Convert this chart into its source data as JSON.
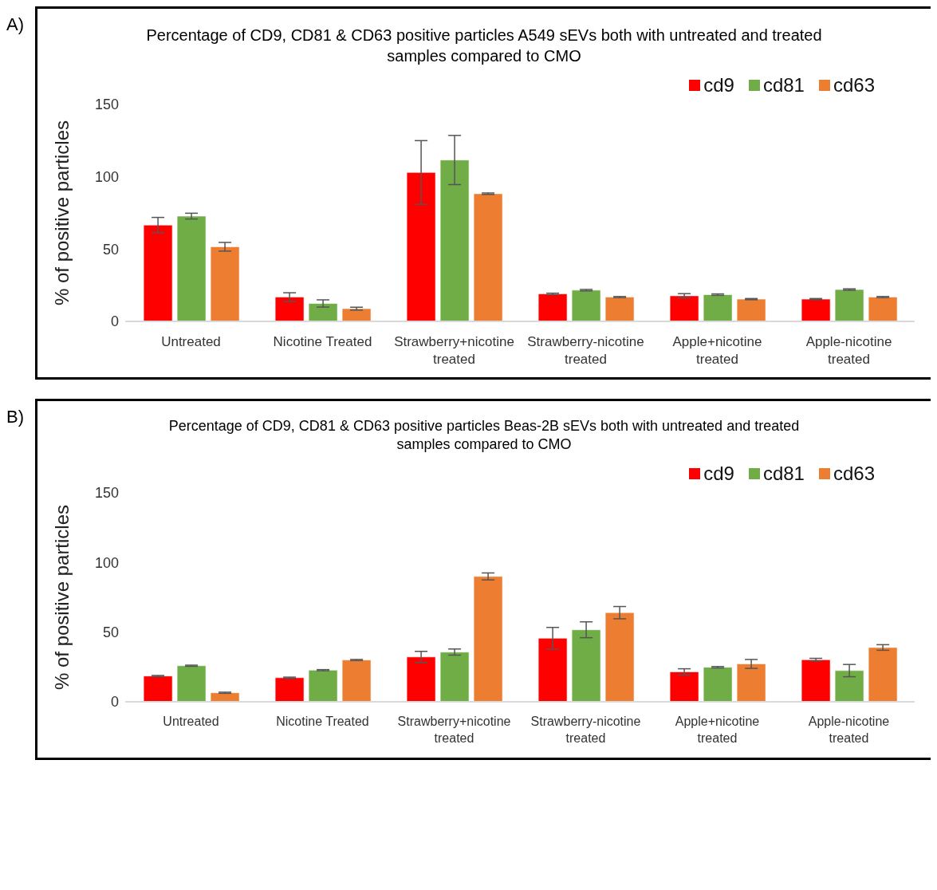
{
  "chart_data": [
    {
      "type": "bar",
      "title": "Percentage of CD9, CD81 & CD63 positive particles A549 sEVs both with untreated and treated samples compared to CMO",
      "ylabel": "% of positive particles",
      "annotations": [
        "A)"
      ],
      "categories": [
        "Untreated",
        "Nicotine Treated",
        "Strawberry+nicotine treated",
        "Strawberry-nicotine treated",
        "Apple+nicotine treated",
        "Apple-nicotine treated"
      ],
      "ylim": [
        0,
        150
      ],
      "yticks": [
        0,
        50,
        100,
        150
      ],
      "legend": "top right",
      "series": [
        {
          "name": "cd9",
          "color": "#ff0000",
          "values": [
            66.6,
            16.8,
            103,
            19,
            17.7,
            15.4
          ],
          "errors": [
            5.3,
            3,
            22,
            0.5,
            1.5,
            0.4
          ]
        },
        {
          "name": "cd81",
          "color": "#70ad47",
          "values": [
            72.8,
            12.4,
            111.6,
            21.6,
            18.5,
            22
          ],
          "errors": [
            2,
            2.5,
            17,
            0.5,
            0.5,
            0.5
          ]
        },
        {
          "name": "cd63",
          "color": "#ed7d31",
          "values": [
            51.6,
            8.8,
            88.3,
            16.8,
            15.4,
            16.8
          ],
          "errors": [
            3,
            1,
            0.5,
            0.4,
            0.4,
            0.4
          ]
        }
      ]
    },
    {
      "type": "bar",
      "title": "Percentage of CD9, CD81 & CD63 positive particles Beas-2B sEVs both with untreated and treated samples compared to CMO",
      "ylabel": "% of positive particles",
      "annotations": [
        "B)"
      ],
      "categories": [
        "Untreated",
        "Nicotine Treated",
        "Strawberry+nicotine treated",
        "Strawberry-nicotine treated",
        "Apple+nicotine treated",
        "Apple-nicotine treated"
      ],
      "ylim": [
        0,
        150
      ],
      "yticks": [
        0,
        50,
        100,
        150
      ],
      "legend": "top right",
      "series": [
        {
          "name": "cd9",
          "color": "#ff0000",
          "values": [
            18.5,
            17.3,
            32.2,
            45.6,
            21.5,
            30.2
          ],
          "errors": [
            0.4,
            0.4,
            4,
            7.8,
            2.2,
            1
          ]
        },
        {
          "name": "cd81",
          "color": "#70ad47",
          "values": [
            25.9,
            22.7,
            35.7,
            51.7,
            24.8,
            22.4
          ],
          "errors": [
            0.4,
            0.4,
            2.2,
            5.7,
            0.5,
            4.4
          ]
        },
        {
          "name": "cd63",
          "color": "#ed7d31",
          "values": [
            6.5,
            30,
            90,
            64,
            27.2,
            39
          ],
          "errors": [
            0.4,
            0.4,
            2.5,
            4.4,
            3.2,
            2
          ]
        }
      ]
    }
  ]
}
